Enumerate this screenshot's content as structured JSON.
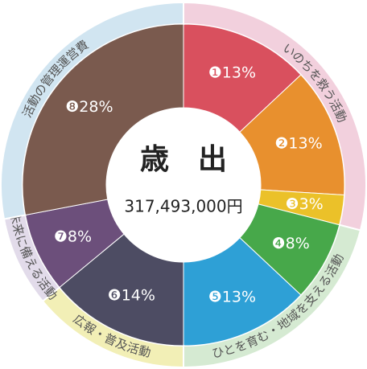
{
  "chart_data": {
    "type": "donut",
    "title": "歳　出",
    "subtitle": "317,493,000円",
    "groups": [
      {
        "label": "いのちを救う活動",
        "color": "#f2d0dd",
        "segments": [
          {
            "marker": "❶",
            "value": 13,
            "value_label": "13%",
            "color": "#d9505e"
          },
          {
            "marker": "❷",
            "value": 13,
            "value_label": "13%",
            "color": "#e8902e"
          },
          {
            "marker": "❸",
            "value": 3,
            "value_label": "3%",
            "color": "#ebc129"
          }
        ]
      },
      {
        "label": "ひとを育む・地域を支える活動",
        "color": "#d5ead2",
        "segments": [
          {
            "marker": "❹",
            "value": 8,
            "value_label": "8%",
            "color": "#47a84a"
          },
          {
            "marker": "❺",
            "value": 13,
            "value_label": "13%",
            "color": "#2ea0d6"
          }
        ]
      },
      {
        "label": "広報・普及活動",
        "color": "#f2efb6",
        "segments": [
          {
            "marker": "❻",
            "value": 14,
            "value_label": "14%",
            "color": "#4d4c63"
          }
        ]
      },
      {
        "label": "未来に備える活動",
        "color": "#e2dbea",
        "segments": [
          {
            "marker": "❼",
            "value": 8,
            "value_label": "8%",
            "color": "#6c4f7b"
          }
        ]
      },
      {
        "label": "活動の管理運営費",
        "color": "#d1e5f1",
        "segments": [
          {
            "marker": "❽",
            "value": 28,
            "value_label": "28%",
            "color": "#7a5a4e"
          }
        ]
      }
    ]
  }
}
